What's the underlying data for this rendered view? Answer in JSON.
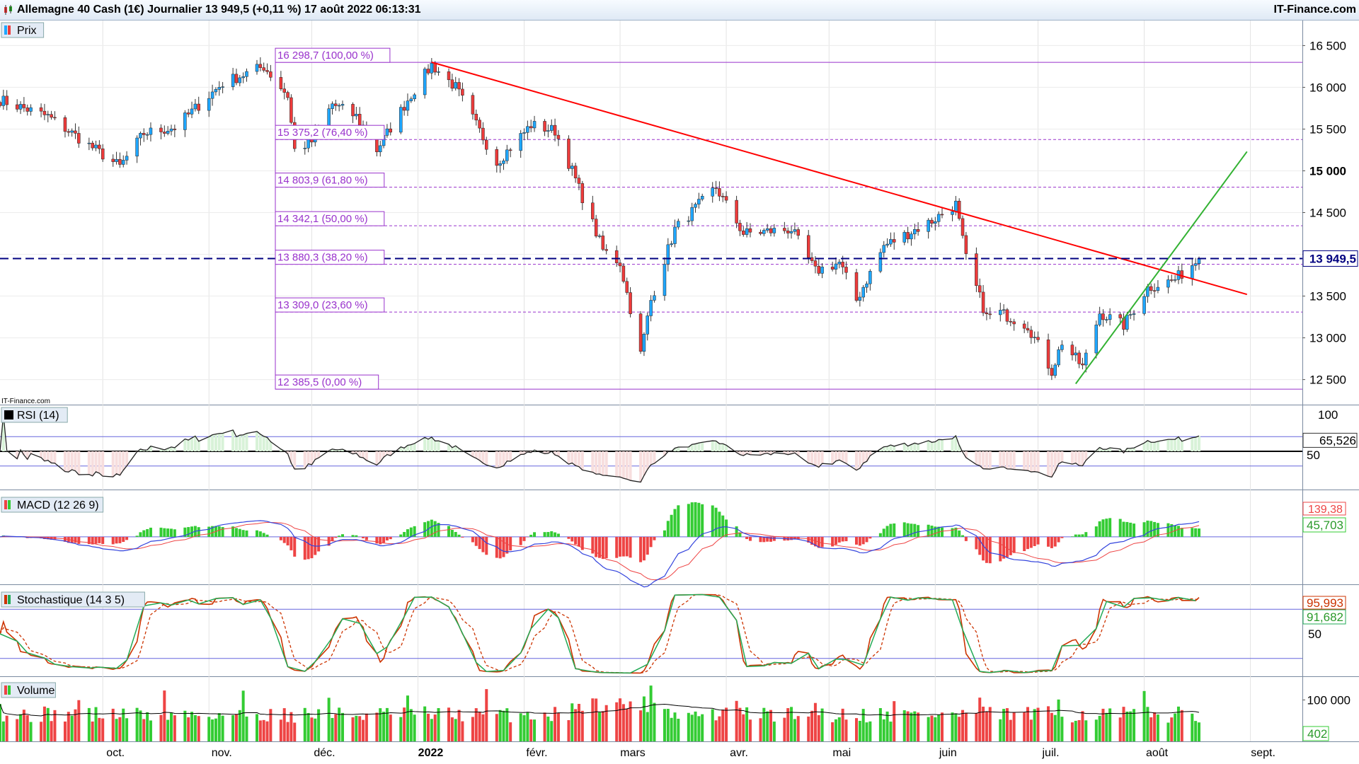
{
  "header": {
    "title": "Allemagne 40 Cash (1€) Journalier 13 949,5 (+0,11 %) 17 août 2022 06:13:31",
    "brand": "IT-Finance.com",
    "watermark": "IT-Finance.com"
  },
  "colors": {
    "up": "#1fa7ff",
    "down": "#ee3b3b",
    "fibo": "#9932cc",
    "resistance": "#ff0000",
    "support": "#33b233",
    "price_line": "#000080",
    "rsi": "#222222",
    "macd": "#3344dd",
    "signal": "#ee4444",
    "hist_up": "#33cc33",
    "hist_down": "#ee4444",
    "stoch_k": "#cc3300",
    "stoch_d": "#22aa55",
    "volume_ma": "#000000"
  },
  "chart_data": [
    {
      "type": "candlestick",
      "panel": "Prix",
      "period": "Journalier",
      "ylim": [
        12200,
        16800
      ],
      "y_ticks": [
        "16 500",
        "16 000",
        "15 500",
        "15 000",
        "14 500",
        "14 000",
        "13 500",
        "13 000",
        "12 500"
      ],
      "y_tick_values": [
        16500,
        16000,
        15500,
        15000,
        14500,
        14000,
        13500,
        13000,
        12500
      ],
      "x_labels": [
        "oct.",
        "nov.",
        "déc.",
        "2022",
        "févr.",
        "mars",
        "avr.",
        "mai",
        "juin",
        "juil.",
        "août",
        "sept."
      ],
      "close_anchors": [
        [
          "2021-09-01",
          15850
        ],
        [
          "2021-09-15",
          15650
        ],
        [
          "2021-09-29",
          15250
        ],
        [
          "2021-10-06",
          15050
        ],
        [
          "2021-10-13",
          15450
        ],
        [
          "2021-10-22",
          15520
        ],
        [
          "2021-11-05",
          16050
        ],
        [
          "2021-11-17",
          16250
        ],
        [
          "2021-11-24",
          15900
        ],
        [
          "2021-11-26",
          15250
        ],
        [
          "2021-12-01",
          15350
        ],
        [
          "2021-12-07",
          15800
        ],
        [
          "2021-12-14",
          15650
        ],
        [
          "2021-12-20",
          15250
        ],
        [
          "2021-12-29",
          15850
        ],
        [
          "2022-01-05",
          16270
        ],
        [
          "2022-01-12",
          16000
        ],
        [
          "2022-01-24",
          15100
        ],
        [
          "2022-02-03",
          15550
        ],
        [
          "2022-02-10",
          15480
        ],
        [
          "2022-02-15",
          15000
        ],
        [
          "2022-02-24",
          14050
        ],
        [
          "2022-03-01",
          13900
        ],
        [
          "2022-03-07",
          12800
        ],
        [
          "2022-03-10",
          13450
        ],
        [
          "2022-03-17",
          14300
        ],
        [
          "2022-03-29",
          14800
        ],
        [
          "2022-04-06",
          14250
        ],
        [
          "2022-04-20",
          14300
        ],
        [
          "2022-04-27",
          13800
        ],
        [
          "2022-05-04",
          13900
        ],
        [
          "2022-05-09",
          13450
        ],
        [
          "2022-05-17",
          14100
        ],
        [
          "2022-05-31",
          14400
        ],
        [
          "2022-06-07",
          14600
        ],
        [
          "2022-06-10",
          13950
        ],
        [
          "2022-06-16",
          13250
        ],
        [
          "2022-06-20",
          13300
        ],
        [
          "2022-06-28",
          13150
        ],
        [
          "2022-07-05",
          12600
        ],
        [
          "2022-07-08",
          12950
        ],
        [
          "2022-07-14",
          12650
        ],
        [
          "2022-07-19",
          13300
        ],
        [
          "2022-07-26",
          13150
        ],
        [
          "2022-08-02",
          13600
        ],
        [
          "2022-08-10",
          13700
        ],
        [
          "2022-08-17",
          13950
        ]
      ],
      "last_price": "13 949,5",
      "fibonacci": [
        {
          "label": "16 298,7 (100,00 %)",
          "value": 16298.7
        },
        {
          "label": "15 375,2 (76,40 %)",
          "value": 15375.2
        },
        {
          "label": "14 803,9 (61,80 %)",
          "value": 14803.9
        },
        {
          "label": "14 342,1 (50,00 %)",
          "value": 14342.1
        },
        {
          "label": "13 880,3 (38,20 %)",
          "value": 13880.3
        },
        {
          "label": "13 309,0 (23,60 %)",
          "value": 13309.0
        },
        {
          "label": "12 385,5 (0,00 %)",
          "value": 12385.5
        }
      ],
      "trendlines": [
        {
          "name": "resistance",
          "from": [
            "2022-01-05",
            16300
          ],
          "to": [
            "2022-08-31",
            13520
          ]
        },
        {
          "name": "support",
          "from": [
            "2022-07-12",
            12450
          ],
          "to": [
            "2022-08-31",
            15230
          ]
        }
      ]
    },
    {
      "type": "line",
      "panel": "RSI (14)",
      "ylim": [
        0,
        100
      ],
      "levels": [
        30,
        50,
        70
      ],
      "y_ticks": [
        "100",
        "50"
      ],
      "last_value": "65,526"
    },
    {
      "type": "line+bar",
      "panel": "MACD (12 26 9)",
      "series": [
        {
          "name": "MACD"
        },
        {
          "name": "Signal"
        },
        {
          "name": "Histogramme"
        }
      ],
      "last_macd": "139,38",
      "last_hist": "45,703"
    },
    {
      "type": "line",
      "panel": "Stochastique (14 3 5)",
      "ylim": [
        0,
        100
      ],
      "levels": [
        20,
        80
      ],
      "y_ticks": [
        "50"
      ],
      "last_k": "95,993",
      "last_d": "91,682"
    },
    {
      "type": "bar",
      "panel": "Volume",
      "y_ticks": [
        "100 000"
      ],
      "last_value": "402"
    }
  ]
}
